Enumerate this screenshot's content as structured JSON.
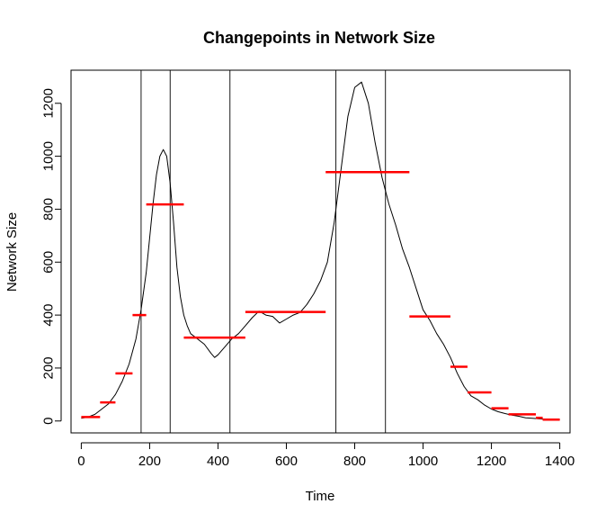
{
  "chart_data": {
    "type": "line",
    "title": "Changepoints in Network Size",
    "xlabel": "Time",
    "ylabel": "Network Size",
    "xlim": [
      -30,
      1430
    ],
    "ylim": [
      -45,
      1325
    ],
    "x_ticks": [
      0,
      200,
      400,
      600,
      800,
      1000,
      1200,
      1400
    ],
    "y_ticks": [
      0,
      200,
      400,
      600,
      800,
      1000,
      1200
    ],
    "grid": false,
    "colors": {
      "series": "#000000",
      "segments": "#ff0000",
      "changepoints": "#000000"
    },
    "series": [
      {
        "x": [
          0,
          20,
          40,
          60,
          80,
          100,
          120,
          140,
          160,
          175,
          190,
          200,
          210,
          220,
          230,
          240,
          250,
          260,
          270,
          280,
          290,
          300,
          310,
          320,
          340,
          360,
          380,
          390,
          400,
          420,
          440,
          460,
          480,
          500,
          520,
          540,
          560,
          580,
          600,
          620,
          640,
          660,
          680,
          700,
          720,
          740,
          760,
          780,
          800,
          820,
          840,
          860,
          880,
          900,
          920,
          940,
          960,
          980,
          1000,
          1020,
          1040,
          1060,
          1080,
          1100,
          1120,
          1140,
          1160,
          1180,
          1200,
          1220,
          1240,
          1260,
          1280,
          1300,
          1320,
          1340,
          1360,
          1380,
          1400
        ],
        "y": [
          10,
          15,
          25,
          45,
          65,
          100,
          150,
          215,
          310,
          420,
          560,
          690,
          820,
          930,
          1000,
          1025,
          1000,
          900,
          750,
          580,
          470,
          400,
          360,
          330,
          310,
          290,
          255,
          240,
          250,
          280,
          310,
          330,
          360,
          390,
          415,
          400,
          395,
          370,
          385,
          400,
          410,
          440,
          480,
          530,
          600,
          750,
          950,
          1150,
          1260,
          1280,
          1200,
          1050,
          920,
          820,
          740,
          650,
          580,
          500,
          420,
          380,
          330,
          290,
          240,
          180,
          130,
          95,
          80,
          60,
          45,
          35,
          28,
          22,
          18,
          12,
          10,
          8,
          6,
          6,
          5
        ]
      }
    ],
    "segments": [
      {
        "x0": 0,
        "x1": 55,
        "y": 15
      },
      {
        "x0": 55,
        "x1": 100,
        "y": 70
      },
      {
        "x0": 100,
        "x1": 150,
        "y": 180
      },
      {
        "x0": 150,
        "x1": 190,
        "y": 400
      },
      {
        "x0": 190,
        "x1": 300,
        "y": 818
      },
      {
        "x0": 300,
        "x1": 480,
        "y": 315
      },
      {
        "x0": 480,
        "x1": 715,
        "y": 412
      },
      {
        "x0": 715,
        "x1": 960,
        "y": 940
      },
      {
        "x0": 960,
        "x1": 1080,
        "y": 395
      },
      {
        "x0": 1080,
        "x1": 1130,
        "y": 205
      },
      {
        "x0": 1130,
        "x1": 1200,
        "y": 108
      },
      {
        "x0": 1200,
        "x1": 1250,
        "y": 48
      },
      {
        "x0": 1250,
        "x1": 1330,
        "y": 25
      },
      {
        "x0": 1330,
        "x1": 1350,
        "y": 12
      },
      {
        "x0": 1350,
        "x1": 1400,
        "y": 5
      }
    ],
    "changepoints_x": [
      175,
      260,
      435,
      745,
      890
    ]
  }
}
